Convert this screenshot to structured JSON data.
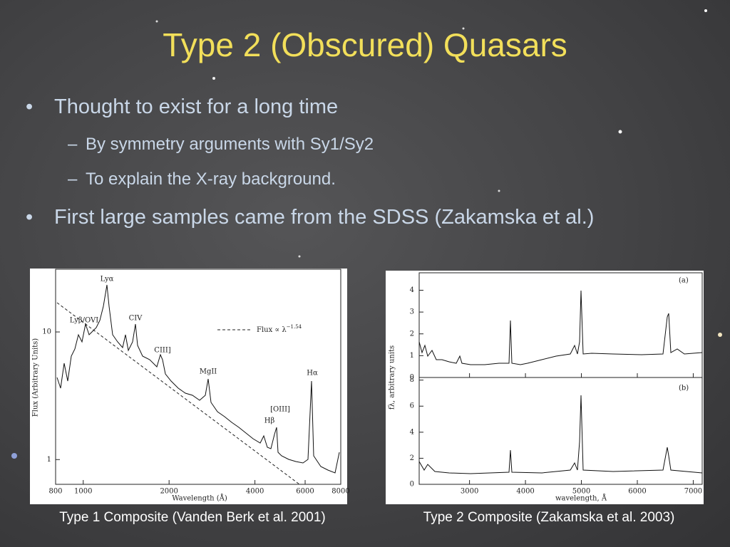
{
  "title": "Type 2 (Obscured) Quasars",
  "bullets": [
    {
      "text": "Thought to exist for a long time",
      "sub": [
        "By symmetry arguments with Sy1/Sy2",
        "To explain the X-ray background."
      ]
    },
    {
      "text": "First large samples came from the SDSS (Zakamska et al.)"
    }
  ],
  "figures": [
    {
      "caption": "Type 1 Composite (Vanden Berk et al. 2001)",
      "xlabel": "Wavelength (Å)",
      "ylabel": "Flux (Arbitrary Units)",
      "xscale": "log",
      "yscale": "log",
      "xlim": [
        800,
        8000
      ],
      "xticks": [
        800,
        1000,
        2000,
        4000,
        6000,
        8000
      ],
      "ylim": [
        0.64,
        31
      ],
      "yticks": [
        1,
        10
      ],
      "legend": "Flux ∝ λ",
      "legend_exponent": "−1.54",
      "line_labels": [
        "Lyα",
        "Lyβ/OVI",
        "CIV",
        "CIII]",
        "MgII",
        "[OIII]",
        "Hβ",
        "Hα"
      ]
    },
    {
      "caption": "Type 2 Composite (Zakamska et al. 2003)",
      "xlabel": "wavelength, Å",
      "ylabel": "fλ, arbitrary units",
      "xlim": [
        2100,
        7160
      ],
      "xticks": [
        3000,
        4000,
        5000,
        6000,
        7000
      ],
      "panels": [
        {
          "label": "(a)",
          "ylim": [
            0,
            4.8
          ],
          "yticks": [
            0,
            1,
            2,
            3,
            4
          ]
        },
        {
          "label": "(b)",
          "ylim": [
            0,
            8.2
          ],
          "yticks": [
            0,
            2,
            4,
            6,
            8
          ]
        }
      ]
    }
  ]
}
